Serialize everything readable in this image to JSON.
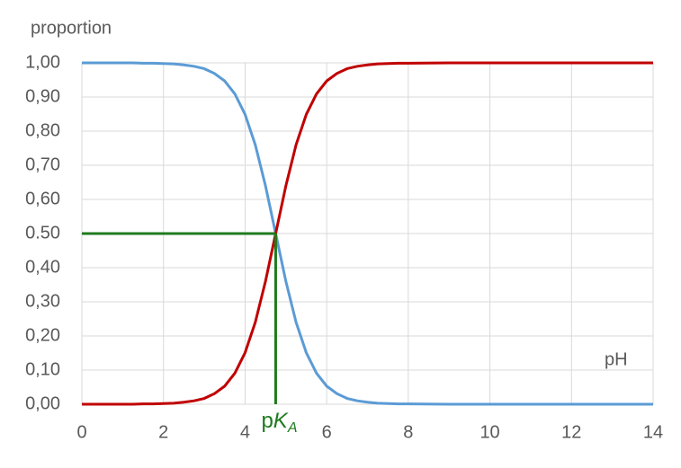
{
  "chart_data": {
    "type": "line",
    "y_label": "proportion",
    "x_label": "pH",
    "x": [
      0,
      0.25,
      0.5,
      0.75,
      1,
      1.25,
      1.5,
      1.75,
      2,
      2.25,
      2.5,
      2.75,
      3,
      3.25,
      3.5,
      3.75,
      4,
      4.25,
      4.5,
      4.75,
      5,
      5.25,
      5.5,
      5.75,
      6,
      6.25,
      6.5,
      6.75,
      7,
      7.25,
      7.5,
      7.75,
      8,
      9,
      10,
      11,
      12,
      13,
      14
    ],
    "series": [
      {
        "color": "#5b9bd5",
        "values": [
          1,
          1,
          1,
          1,
          1,
          1,
          0.999,
          0.999,
          0.998,
          0.997,
          0.994,
          0.99,
          0.983,
          0.969,
          0.947,
          0.909,
          0.849,
          0.76,
          0.64,
          0.5,
          0.36,
          0.24,
          0.151,
          0.091,
          0.053,
          0.031,
          0.017,
          0.01,
          0.006,
          0.003,
          0.002,
          0.001,
          0.001,
          0,
          0,
          0,
          0,
          0,
          0
        ]
      },
      {
        "color": "#c00000",
        "values": [
          0,
          0,
          0,
          0,
          0,
          0,
          0.001,
          0.001,
          0.002,
          0.003,
          0.006,
          0.01,
          0.017,
          0.031,
          0.053,
          0.091,
          0.151,
          0.24,
          0.36,
          0.5,
          0.64,
          0.76,
          0.849,
          0.909,
          0.947,
          0.969,
          0.983,
          0.99,
          0.994,
          0.997,
          0.998,
          0.999,
          0.999,
          1,
          1,
          1,
          1,
          1,
          1
        ]
      }
    ],
    "marker": {
      "x": 4.75,
      "y": 0.5,
      "color": "#1e7b1e",
      "label": [
        "p",
        "K",
        "A"
      ]
    },
    "xlim": [
      0,
      14
    ],
    "xticks": [
      0,
      2,
      4,
      6,
      8,
      10,
      12,
      14
    ],
    "ylim": [
      0,
      1
    ],
    "yticks": [
      {
        "value": 0,
        "label": "0,00"
      },
      {
        "value": 0.1,
        "label": "0,10"
      },
      {
        "value": 0.2,
        "label": "0,20"
      },
      {
        "value": 0.3,
        "label": "0,30"
      },
      {
        "value": 0.4,
        "label": "0,40"
      },
      {
        "value": 0.5,
        "label": "0.50"
      },
      {
        "value": 0.6,
        "label": "0,60"
      },
      {
        "value": 0.7,
        "label": "0,70"
      },
      {
        "value": 0.8,
        "label": "0,80"
      },
      {
        "value": 0.9,
        "label": "0,90"
      },
      {
        "value": 1,
        "label": "1,00"
      }
    ],
    "grid": true
  }
}
